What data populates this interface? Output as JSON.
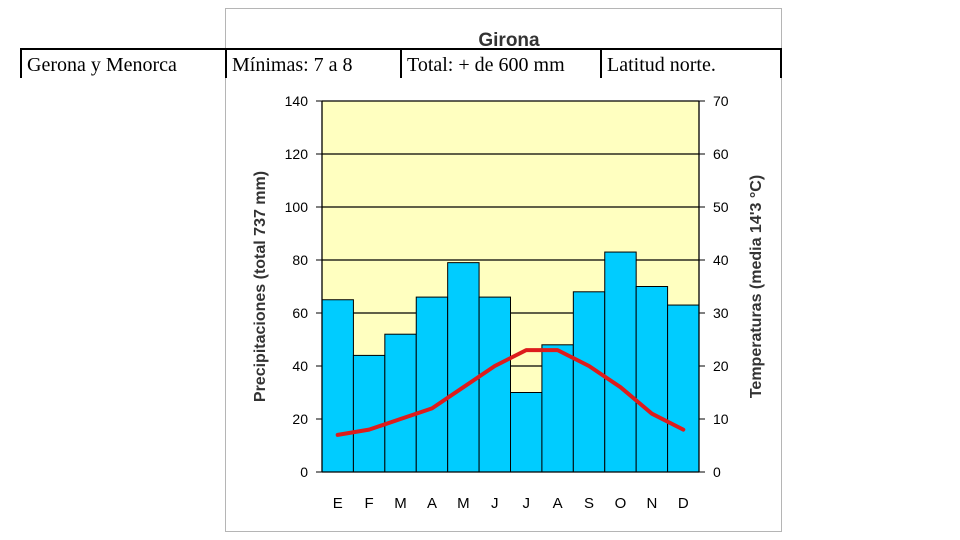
{
  "header_row": [
    "Gerona y Menorca",
    "Mínimas:  7  a 8",
    "Total: + de 600 mm",
    "Latitud norte."
  ],
  "chart_data": {
    "type": "bar",
    "title": "Girona",
    "categories": [
      "E",
      "F",
      "M",
      "A",
      "M",
      "J",
      "J",
      "A",
      "S",
      "O",
      "N",
      "D"
    ],
    "series": [
      {
        "values": [
          65,
          44,
          52,
          66,
          79,
          66,
          30,
          48,
          68,
          83,
          70,
          63
        ],
        "axis": "left",
        "kind": "bar",
        "color": "#00ccff"
      },
      {
        "values": [
          7,
          8,
          10,
          12,
          16,
          20,
          23,
          23,
          20,
          16,
          11,
          8
        ],
        "axis": "right",
        "kind": "line",
        "color": "#dd1c1c"
      }
    ],
    "ylabel": "Precipitaciones (total 737 mm)",
    "y2label": "Temperaturas (media 14'3 °C)",
    "ylim": [
      0,
      140
    ],
    "y2lim": [
      0,
      70
    ],
    "yticks": [
      "0",
      "20",
      "40",
      "60",
      "80",
      "100",
      "120",
      "140"
    ],
    "y2ticks": [
      "0",
      "10",
      "20",
      "30",
      "40",
      "50",
      "60",
      "70"
    ],
    "plot_background": "#ffffc0",
    "grid": true
  }
}
